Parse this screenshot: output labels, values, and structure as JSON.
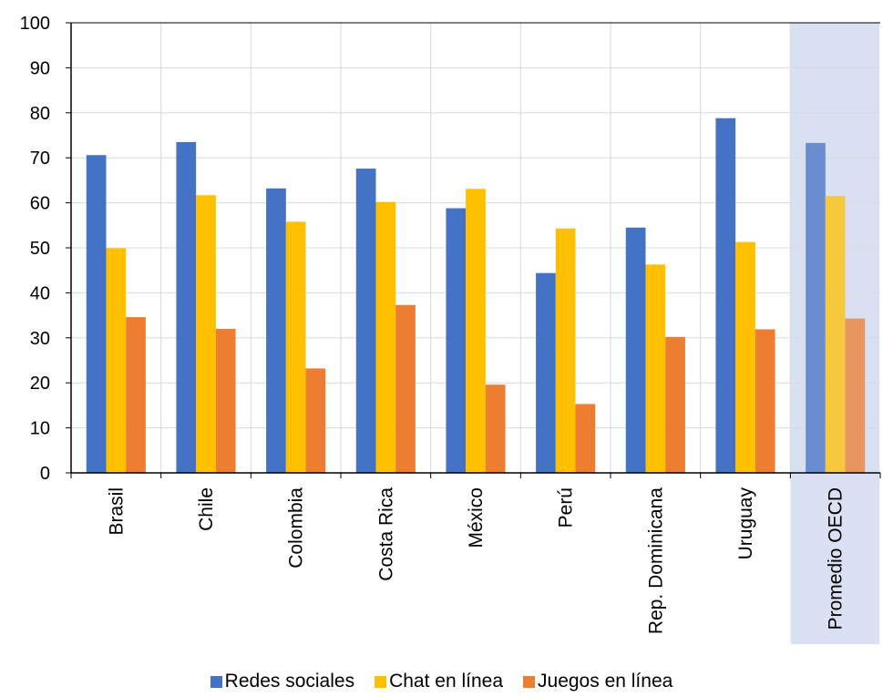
{
  "chart_data": {
    "type": "bar",
    "categories": [
      "Brasil",
      "Chile",
      "Colombia",
      "Costa Rica",
      "México",
      "Perú",
      "Rep. Dominicana",
      "Uruguay",
      "Promedio OECD"
    ],
    "series": [
      {
        "name": "Redes sociales",
        "color": "#4472C4",
        "values": [
          70.6,
          73.5,
          63.2,
          67.6,
          58.8,
          44.4,
          54.5,
          78.8,
          73.3
        ]
      },
      {
        "name": "Chat en línea",
        "color": "#FFC000",
        "values": [
          49.9,
          61.7,
          55.8,
          60.2,
          63.1,
          54.3,
          46.3,
          51.3,
          61.5
        ]
      },
      {
        "name": "Juegos en línea",
        "color": "#ED7D31",
        "values": [
          34.6,
          32.0,
          23.2,
          37.3,
          19.6,
          15.3,
          30.2,
          31.9,
          34.3
        ]
      }
    ],
    "title": "",
    "xlabel": "",
    "ylabel": "",
    "ylim": [
      0,
      100
    ],
    "yticks": [
      "0",
      "10",
      "20",
      "30",
      "40",
      "50",
      "60",
      "70",
      "80",
      "90",
      "100"
    ],
    "grid": true,
    "highlight_category": "Promedio OECD",
    "highlight_color": "#D9E1F2",
    "legend_position": "bottom"
  }
}
